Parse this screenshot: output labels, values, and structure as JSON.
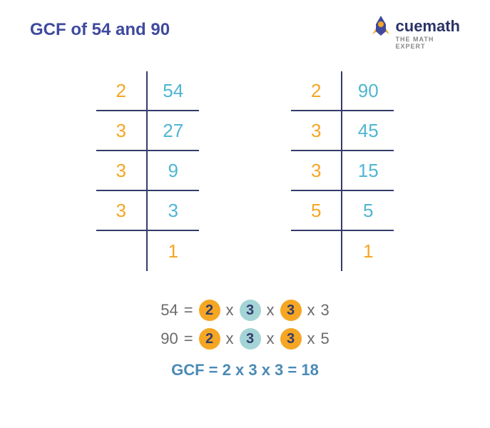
{
  "title": {
    "text": "GCF of 54 and 90",
    "color": "#3f4a9e"
  },
  "logo": {
    "rocket_color1": "#f5a623",
    "rocket_color2": "#3f4a9e",
    "name": "cuemath",
    "name_color": "#2b3467",
    "tagline": "THE MATH EXPERT",
    "tagline_color": "#888888"
  },
  "colors": {
    "divisor": "#f5a623",
    "quotient": "#4fb6d1",
    "border": "#333b6b",
    "expr_text": "#6b6b6b",
    "circle_orange_bg": "#f5a623",
    "circle_orange_fg": "#333b6b",
    "circle_teal_bg": "#a4d4d6",
    "circle_teal_fg": "#333b6b",
    "gcf_text": "#4a8bb5"
  },
  "tables": [
    {
      "name": "left",
      "divisors": [
        "2",
        "3",
        "3",
        "3",
        ""
      ],
      "quotients": [
        "54",
        "27",
        "9",
        "3",
        "1"
      ]
    },
    {
      "name": "right",
      "divisors": [
        "2",
        "3",
        "3",
        "5",
        ""
      ],
      "quotients": [
        "90",
        "45",
        "15",
        "5",
        "1"
      ]
    }
  ],
  "factorization": {
    "rows": [
      {
        "lhs": "54",
        "eq": "=",
        "terms": [
          {
            "val": "2",
            "circle": "orange"
          },
          {
            "op": "x"
          },
          {
            "val": "3",
            "circle": "teal"
          },
          {
            "op": "x"
          },
          {
            "val": "3",
            "circle": "orange"
          },
          {
            "op": "x"
          },
          {
            "val": "3",
            "circle": null
          }
        ]
      },
      {
        "lhs": "90",
        "eq": "=",
        "terms": [
          {
            "val": "2",
            "circle": "orange"
          },
          {
            "op": "x"
          },
          {
            "val": "3",
            "circle": "teal"
          },
          {
            "op": "x"
          },
          {
            "val": "3",
            "circle": "orange"
          },
          {
            "op": "x"
          },
          {
            "val": "5",
            "circle": null
          }
        ]
      }
    ],
    "gcf_label": "GCF",
    "gcf_eq": "=",
    "gcf_expr": "2 x 3 x 3",
    "gcf_eq2": "=",
    "gcf_result": "18"
  }
}
